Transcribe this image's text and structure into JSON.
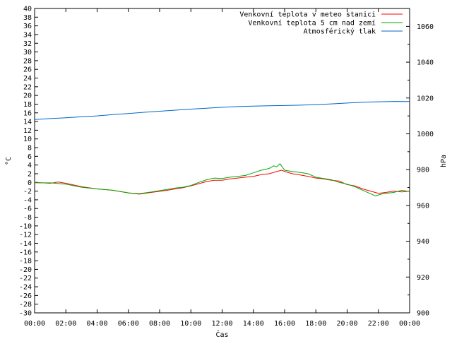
{
  "chart_data": {
    "type": "line",
    "xlabel": "Čas",
    "ylabel_left": "°C",
    "ylabel_right": "hPa",
    "xlim": [
      0,
      24
    ],
    "ylim_left": [
      -30,
      40
    ],
    "ylim_right": [
      900,
      1070
    ],
    "x_ticks": [
      "00:00",
      "02:00",
      "04:00",
      "06:00",
      "08:00",
      "10:00",
      "12:00",
      "14:00",
      "16:00",
      "18:00",
      "20:00",
      "22:00",
      "00:00"
    ],
    "y_left_ticks": [
      40,
      38,
      36,
      34,
      32,
      30,
      28,
      26,
      24,
      22,
      20,
      18,
      16,
      14,
      12,
      10,
      8,
      6,
      4,
      2,
      0,
      -2,
      -4,
      -6,
      -8,
      -10,
      -12,
      -14,
      -16,
      -18,
      -20,
      -22,
      -24,
      -26,
      -28,
      -30
    ],
    "y_right_ticks": [
      1060,
      1040,
      1020,
      1000,
      980,
      960,
      940,
      920,
      900
    ],
    "grid": false,
    "legend_position": "top-right",
    "series": [
      {
        "name": "Venkovní teplota v meteo stanici",
        "axis": "left",
        "color": "#ff0000",
        "x": [
          0,
          1,
          1.5,
          2,
          3,
          4,
          5,
          6,
          6.7,
          7.5,
          8.5,
          9.5,
          10,
          10.5,
          11,
          11.5,
          12,
          12.5,
          13,
          13.5,
          14,
          14.5,
          15,
          15.5,
          15.8,
          16.2,
          16.5,
          17,
          17.5,
          18,
          18.5,
          19,
          19.5,
          20,
          20.5,
          21,
          21.5,
          22,
          22.5,
          23,
          23.5,
          24
        ],
        "values": [
          0,
          -0.2,
          0.1,
          -0.2,
          -1.0,
          -1.5,
          -1.8,
          -2.4,
          -2.7,
          -2.3,
          -1.8,
          -1.2,
          -0.8,
          -0.3,
          0.2,
          0.5,
          0.5,
          0.8,
          1.0,
          1.2,
          1.4,
          1.8,
          2.0,
          2.5,
          2.8,
          2.3,
          2.0,
          1.7,
          1.4,
          1.0,
          0.8,
          0.5,
          0.3,
          -0.5,
          -0.8,
          -1.5,
          -2.0,
          -2.5,
          -2.3,
          -2.0,
          -2.2,
          -2.0
        ]
      },
      {
        "name": "Venkovní teplota 5 cm nad zemí",
        "axis": "left",
        "color": "#00aa00",
        "x": [
          0,
          1,
          2,
          3,
          4,
          5,
          6,
          6.7,
          7.5,
          8.5,
          9,
          9.5,
          10,
          10.5,
          11,
          11.5,
          12,
          12.5,
          13,
          13.5,
          14,
          14.5,
          15,
          15.3,
          15.5,
          15.7,
          16,
          16.5,
          17,
          17.5,
          18,
          18.5,
          19,
          19.5,
          20,
          20.5,
          21,
          21.5,
          21.8,
          22.3,
          23,
          23.5,
          24
        ],
        "values": [
          -0.1,
          -0.1,
          -0.4,
          -1.1,
          -1.5,
          -1.8,
          -2.4,
          -2.6,
          -2.2,
          -1.6,
          -1.3,
          -1.1,
          -0.7,
          0,
          0.6,
          1.0,
          0.9,
          1.2,
          1.4,
          1.6,
          2.2,
          2.8,
          3.2,
          3.8,
          3.6,
          4.3,
          2.8,
          2.5,
          2.3,
          2.0,
          1.2,
          0.9,
          0.6,
          0,
          -0.4,
          -1.0,
          -1.8,
          -2.6,
          -3.1,
          -2.6,
          -2.3,
          -1.8,
          -2.1
        ]
      },
      {
        "name": "Atmosférický tlak",
        "axis": "right",
        "color": "#0066cc",
        "x": [
          0,
          1,
          2,
          3,
          4,
          5,
          6,
          7,
          8,
          9,
          10,
          11,
          12,
          13,
          14,
          15,
          16,
          17,
          18,
          19,
          20,
          21,
          22,
          23,
          24
        ],
        "values": [
          1008,
          1008.5,
          1009,
          1009.5,
          1010,
          1010.7,
          1011.3,
          1012,
          1012.6,
          1013.2,
          1013.8,
          1014.3,
          1014.8,
          1015.2,
          1015.5,
          1015.7,
          1015.8,
          1016,
          1016.3,
          1016.7,
          1017.2,
          1017.6,
          1017.9,
          1018.1,
          1018
        ]
      }
    ]
  }
}
